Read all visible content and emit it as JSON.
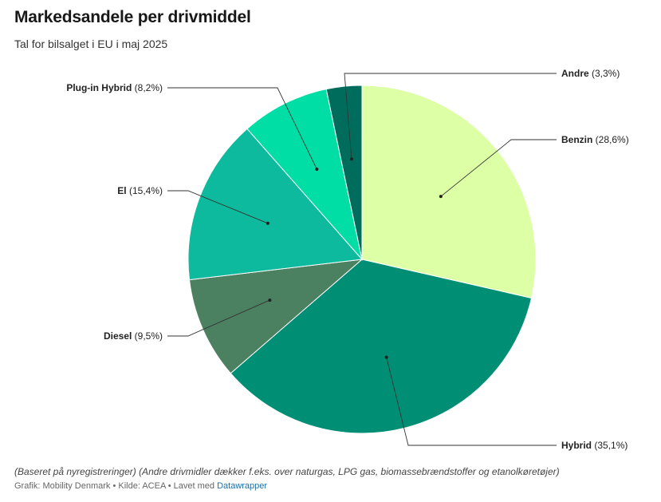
{
  "chart_data": {
    "type": "pie",
    "title": "Markedsandele per drivmiddel",
    "subtitle": "Tal for bilsalget i EU i maj 2025",
    "slices": [
      {
        "name": "Benzin",
        "label": "(28,6%)",
        "value": 28.6,
        "color": "#ddffa6"
      },
      {
        "name": "Hybrid",
        "label": "(35,1%)",
        "value": 35.1,
        "color": "#008e75"
      },
      {
        "name": "Diesel",
        "label": "(9,5%)",
        "value": 9.5,
        "color": "#4b8060"
      },
      {
        "name": "El",
        "label": "(15,4%)",
        "value": 15.4,
        "color": "#0dba9d"
      },
      {
        "name": "Plug-in Hybrid",
        "label": "(8,2%)",
        "value": 8.2,
        "color": "#00dea5"
      },
      {
        "name": "Andre",
        "label": "(3,3%)",
        "value": 3.3,
        "color": "#006d5c"
      }
    ]
  },
  "footer": {
    "notes": "(Baseret på nyregistreringer) (Andre drivmidler dækker f.eks. over naturgas, LPG gas, biomassebrændstoffer og etanolkøretøjer)",
    "byline_prefix": "Grafik: Mobility Denmark • Kilde: ACEA • Lavet med ",
    "byline_link": "Datawrapper"
  }
}
